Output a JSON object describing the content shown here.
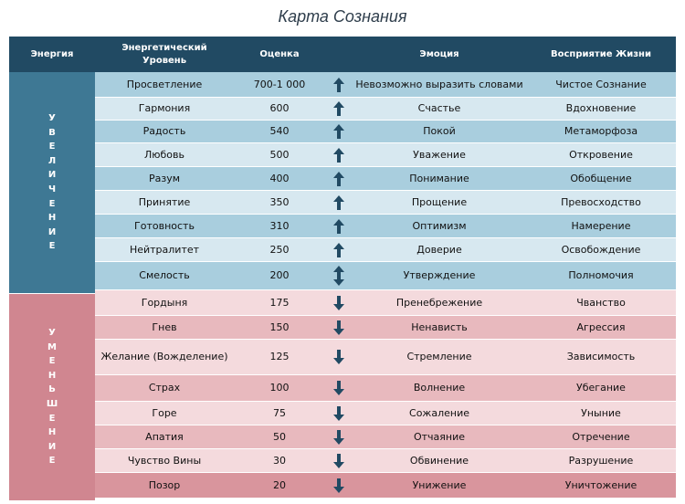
{
  "title": "Карта Сознания",
  "headers": {
    "energy": "Энергия",
    "level": "Энергетический Уровень",
    "score": "Оценка",
    "emotion": "Эмоция",
    "life": "Восприятие Жизни"
  },
  "sections": [
    {
      "label": "УВЕЛИЧЕНИЕ",
      "color": "#3e7894"
    },
    {
      "label": "УМЕНЬШЕНИЕ",
      "color": "#d08690"
    }
  ],
  "rows": [
    {
      "level": "Просветление",
      "score": "700-1 000",
      "arrow": "up",
      "emotion": "Невозможно выразить словами",
      "life": "Чистое Сознание"
    },
    {
      "level": "Гармония",
      "score": "600",
      "arrow": "up",
      "emotion": "Счастье",
      "life": "Вдохновение"
    },
    {
      "level": "Радость",
      "score": "540",
      "arrow": "up",
      "emotion": "Покой",
      "life": "Метаморфоза"
    },
    {
      "level": "Любовь",
      "score": "500",
      "arrow": "up",
      "emotion": "Уважение",
      "life": "Откровение"
    },
    {
      "level": "Разум",
      "score": "400",
      "arrow": "up",
      "emotion": "Понимание",
      "life": "Обобщение"
    },
    {
      "level": "Принятие",
      "score": "350",
      "arrow": "up",
      "emotion": "Прощение",
      "life": "Превосходство"
    },
    {
      "level": "Готовность",
      "score": "310",
      "arrow": "up",
      "emotion": "Оптимизм",
      "life": "Намерение"
    },
    {
      "level": "Нейтралитет",
      "score": "250",
      "arrow": "up",
      "emotion": "Доверие",
      "life": "Освобождение"
    },
    {
      "level": "Смелость",
      "score": "200",
      "arrow": "both",
      "emotion": "Утверждение",
      "life": "Полномочия"
    },
    {
      "level": "Гордыня",
      "score": "175",
      "arrow": "down",
      "emotion": "Пренебрежение",
      "life": "Чванство"
    },
    {
      "level": "Гнев",
      "score": "150",
      "arrow": "down",
      "emotion": "Ненависть",
      "life": "Агрессия"
    },
    {
      "level": "Желание (Вожделение)",
      "score": "125",
      "arrow": "down",
      "emotion": "Стремление",
      "life": "Зависимость"
    },
    {
      "level": "Страх",
      "score": "100",
      "arrow": "down",
      "emotion": "Волнение",
      "life": "Убегание"
    },
    {
      "level": "Горе",
      "score": "75",
      "arrow": "down",
      "emotion": "Сожаление",
      "life": "Уныние"
    },
    {
      "level": "Апатия",
      "score": "50",
      "arrow": "down",
      "emotion": "Отчаяние",
      "life": "Отречение"
    },
    {
      "level": "Чувство Вины",
      "score": "30",
      "arrow": "down",
      "emotion": "Обвинение",
      "life": "Разрушение"
    },
    {
      "level": "Позор",
      "score": "20",
      "arrow": "down",
      "emotion": "Унижение",
      "life": "Уничтожение"
    }
  ],
  "colors": {
    "header": "#214a63",
    "arrow": "#214a63",
    "up_dark": "#a9cede",
    "up_light": "#d7e8f0",
    "down_dark": "#e8b9be",
    "down_light": "#f4dadd",
    "down_last": "#d9959d"
  }
}
